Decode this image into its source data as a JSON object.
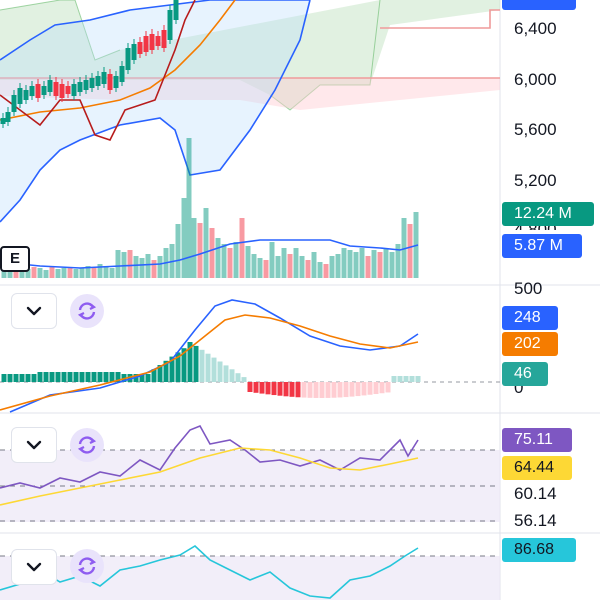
{
  "price_axis": {
    "labels": [
      "6,400",
      "6,000",
      "5,600",
      "5,200",
      "4,800"
    ]
  },
  "volume_badges": {
    "volume": "12.24 M",
    "volume_ma": "5.87 M"
  },
  "macd_pane": {
    "axis_top": "500",
    "axis_bottom": "0",
    "badges": {
      "macd": "248",
      "signal": "202",
      "histogram": "46"
    }
  },
  "rsi_pane": {
    "badges": {
      "rsi": "75.11",
      "rsi_ma": "64.44"
    },
    "levels": [
      "60.14",
      "56.14"
    ]
  },
  "stoch_pane": {
    "badges": {
      "value": "86.68"
    }
  },
  "toolbar": {
    "e_label": "E"
  },
  "colors": {
    "volume_green": "#089981",
    "volume_ma": "#2962ff",
    "macd": "#2962ff",
    "signal": "#f57c00",
    "histogram": "#26a69a",
    "rsi": "#7e57c2",
    "rsi_ma": "#fdd835",
    "stoch": "#26c6da"
  },
  "icons": [
    "chevron-down-icon",
    "sync-icon"
  ]
}
